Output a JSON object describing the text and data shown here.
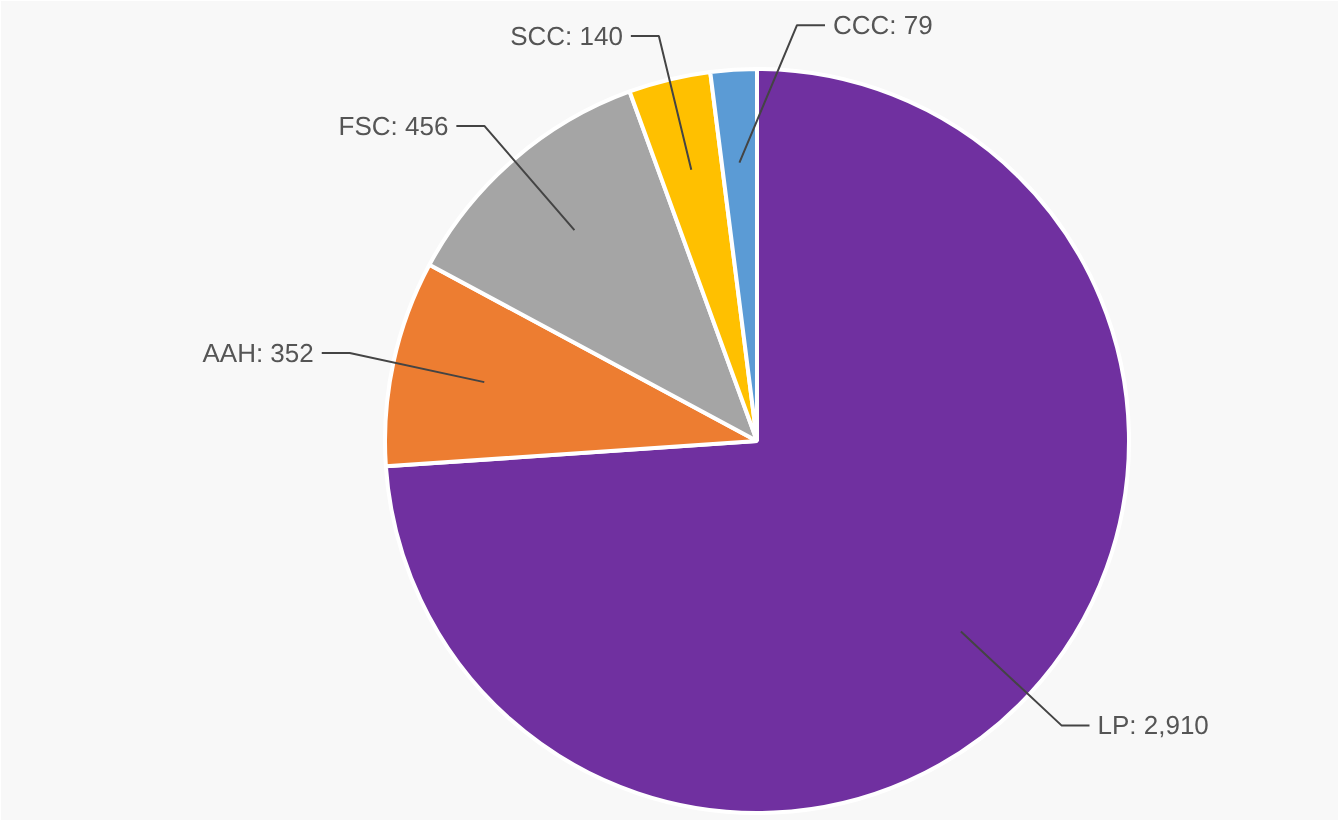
{
  "chart_data": {
    "type": "pie",
    "categories": [
      "LP: 2,910",
      "AAH: 352",
      "FSC: 456",
      "SCC: 140",
      "CCC: 79"
    ],
    "values": [
      2910,
      352,
      456,
      140,
      79
    ],
    "colors": [
      "#7030a0",
      "#ed7d31",
      "#a5a5a5",
      "#ffc000",
      "#5b9bd5"
    ]
  }
}
